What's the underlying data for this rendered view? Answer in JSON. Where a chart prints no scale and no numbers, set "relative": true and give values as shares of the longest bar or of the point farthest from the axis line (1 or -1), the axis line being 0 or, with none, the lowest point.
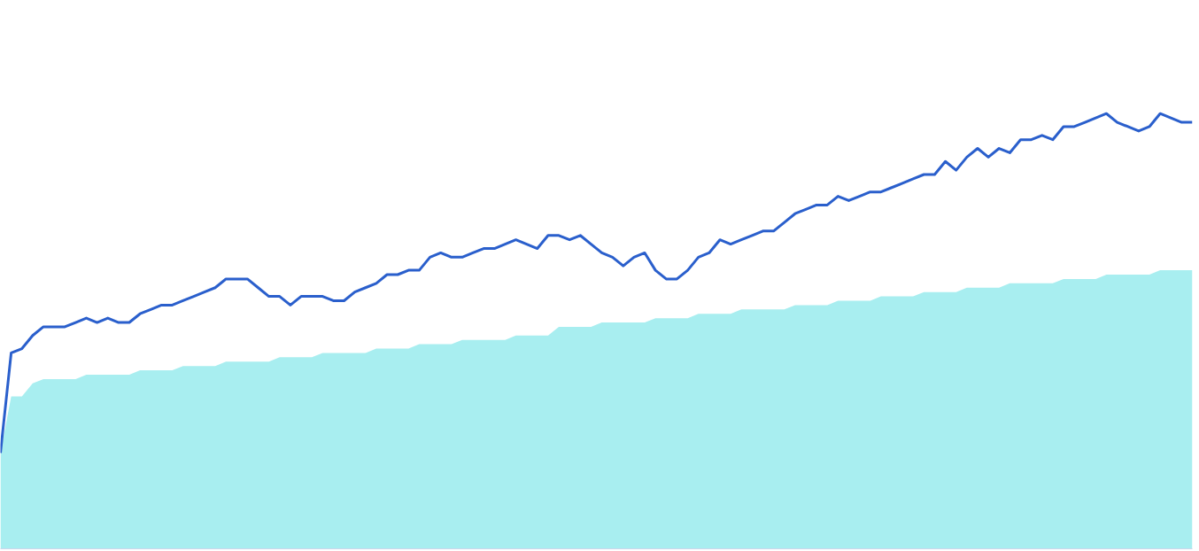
{
  "chart_data": {
    "type": "line",
    "relative": true,
    "categories": [
      null,
      null,
      null,
      null,
      null,
      null,
      null,
      null,
      null,
      null,
      null,
      null,
      null,
      null,
      null,
      null,
      null,
      null,
      null,
      null,
      null,
      null,
      null,
      null,
      null,
      null,
      null,
      null,
      null,
      null,
      null,
      null,
      null,
      null,
      null,
      null,
      null,
      null,
      null,
      null,
      null,
      null,
      null,
      null,
      null,
      null,
      null,
      null,
      null,
      null,
      null,
      null,
      null,
      null,
      null,
      null,
      null,
      null,
      null,
      null,
      null,
      null,
      null,
      null,
      null,
      null,
      null,
      null,
      null,
      null,
      null,
      null,
      null,
      null,
      null,
      null,
      null,
      null,
      null,
      null,
      null,
      null,
      null,
      null,
      null,
      null,
      null,
      null,
      null,
      null,
      null,
      null,
      null,
      null,
      null,
      null,
      null,
      null,
      null,
      null,
      null,
      null,
      null,
      null,
      null,
      null,
      null,
      null,
      null,
      null,
      null,
      null
    ],
    "series": [
      {
        "type": "area",
        "color": "#a8eef0",
        "values": [
          0.22,
          0.35,
          0.35,
          0.38,
          0.39,
          0.39,
          0.39,
          0.39,
          0.4,
          0.4,
          0.4,
          0.4,
          0.4,
          0.41,
          0.41,
          0.41,
          0.41,
          0.42,
          0.42,
          0.42,
          0.42,
          0.43,
          0.43,
          0.43,
          0.43,
          0.43,
          0.44,
          0.44,
          0.44,
          0.44,
          0.45,
          0.45,
          0.45,
          0.45,
          0.45,
          0.46,
          0.46,
          0.46,
          0.46,
          0.47,
          0.47,
          0.47,
          0.47,
          0.48,
          0.48,
          0.48,
          0.48,
          0.48,
          0.49,
          0.49,
          0.49,
          0.49,
          0.51,
          0.51,
          0.51,
          0.51,
          0.52,
          0.52,
          0.52,
          0.52,
          0.52,
          0.53,
          0.53,
          0.53,
          0.53,
          0.54,
          0.54,
          0.54,
          0.54,
          0.55,
          0.55,
          0.55,
          0.55,
          0.55,
          0.56,
          0.56,
          0.56,
          0.56,
          0.57,
          0.57,
          0.57,
          0.57,
          0.58,
          0.58,
          0.58,
          0.58,
          0.59,
          0.59,
          0.59,
          0.59,
          0.6,
          0.6,
          0.6,
          0.6,
          0.61,
          0.61,
          0.61,
          0.61,
          0.61,
          0.62,
          0.62,
          0.62,
          0.62,
          0.63,
          0.63,
          0.63,
          0.63,
          0.63,
          0.64,
          0.64,
          0.64,
          0.64
        ]
      },
      {
        "color": "#2a5fcc",
        "values": [
          0.22,
          0.45,
          0.46,
          0.49,
          0.51,
          0.51,
          0.51,
          0.52,
          0.53,
          0.52,
          0.53,
          0.52,
          0.52,
          0.54,
          0.55,
          0.56,
          0.56,
          0.57,
          0.58,
          0.59,
          0.6,
          0.62,
          0.62,
          0.62,
          0.6,
          0.58,
          0.58,
          0.56,
          0.58,
          0.58,
          0.58,
          0.57,
          0.57,
          0.59,
          0.6,
          0.61,
          0.63,
          0.63,
          0.64,
          0.64,
          0.67,
          0.68,
          0.67,
          0.67,
          0.68,
          0.69,
          0.69,
          0.7,
          0.71,
          0.7,
          0.69,
          0.72,
          0.72,
          0.71,
          0.72,
          0.7,
          0.68,
          0.67,
          0.65,
          0.67,
          0.68,
          0.64,
          0.62,
          0.62,
          0.64,
          0.67,
          0.68,
          0.71,
          0.7,
          0.71,
          0.72,
          0.73,
          0.73,
          0.75,
          0.77,
          0.78,
          0.79,
          0.79,
          0.81,
          0.8,
          0.81,
          0.82,
          0.82,
          0.83,
          0.84,
          0.85,
          0.86,
          0.86,
          0.89,
          0.87,
          0.9,
          0.92,
          0.9,
          0.92,
          0.91,
          0.94,
          0.94,
          0.95,
          0.94,
          0.97,
          0.97,
          0.98,
          0.99,
          1.0,
          0.98,
          0.97,
          0.96,
          0.97,
          1.0,
          0.99,
          0.98,
          0.98
        ]
      }
    ]
  }
}
